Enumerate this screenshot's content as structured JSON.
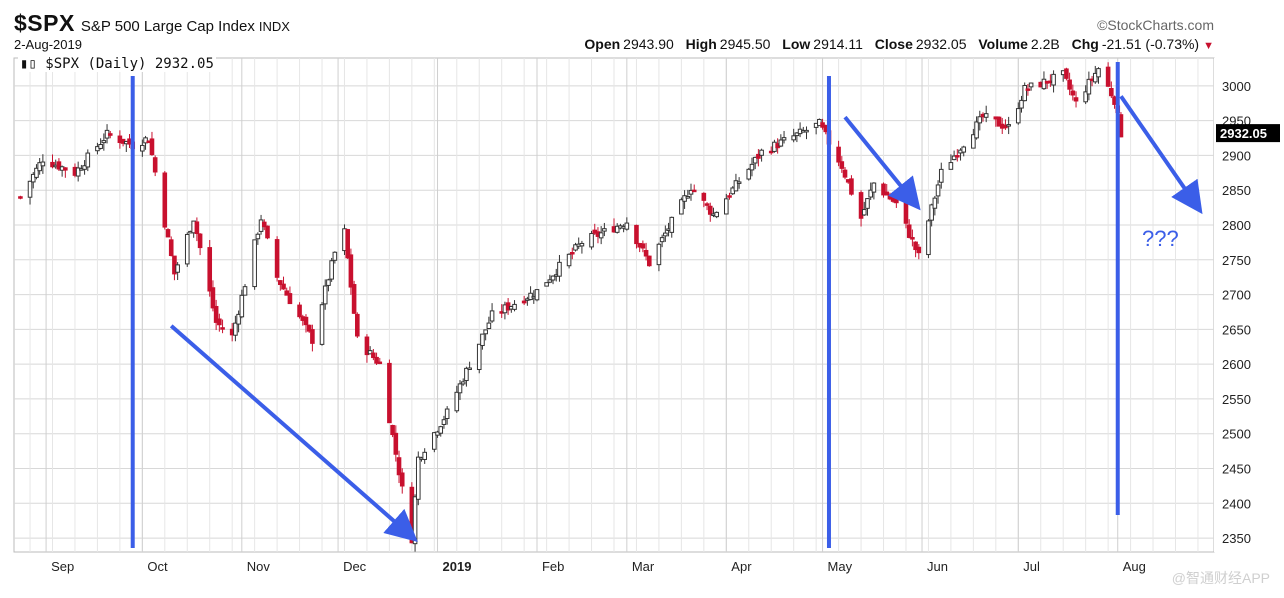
{
  "header": {
    "ticker": "$SPX",
    "name": "S&P 500 Large Cap Index",
    "exchange": "INDX",
    "date": "2-Aug-2019",
    "source": "©StockCharts.com",
    "open_label": "Open",
    "open": "2943.90",
    "high_label": "High",
    "high": "2945.50",
    "low_label": "Low",
    "low": "2914.11",
    "close_label": "Close",
    "close": "2932.05",
    "volume_label": "Volume",
    "volume": "2.2B",
    "chg_label": "Chg",
    "chg": "-21.51 (-0.73%)",
    "chg_icon": "down-triangle-icon"
  },
  "legend": {
    "icon": "candlestick-icon",
    "text": "$SPX (Daily) 2932.05"
  },
  "annotation_text": "???",
  "watermark": "@智通财经APP",
  "colors": {
    "up": "#333333",
    "down": "#c8102e",
    "grid": "#d8d8d8",
    "arrow": "#3b5ee8",
    "price_tag": "#000000"
  },
  "chart_data": {
    "type": "candlestick",
    "ylim": [
      2330,
      3040
    ],
    "y_ticks": [
      2350,
      2400,
      2450,
      2500,
      2550,
      2600,
      2650,
      2700,
      2750,
      2800,
      2850,
      2900,
      2950,
      3000
    ],
    "x_labels": [
      "Sep",
      "Oct",
      "Nov",
      "Dec",
      "2019",
      "Feb",
      "Mar",
      "Apr",
      "May",
      "Jun",
      "Jul",
      "Aug"
    ],
    "last_price_label": "2932.05",
    "grid": true,
    "close_path": [
      {
        "date": "2018-08-24",
        "close": 2840
      },
      {
        "date": "2018-08-31",
        "close": 2895
      },
      {
        "date": "2018-09-10",
        "close": 2875
      },
      {
        "date": "2018-09-20",
        "close": 2930
      },
      {
        "date": "2018-09-28",
        "close": 2915
      },
      {
        "date": "2018-10-03",
        "close": 2925
      },
      {
        "date": "2018-10-11",
        "close": 2730
      },
      {
        "date": "2018-10-17",
        "close": 2810
      },
      {
        "date": "2018-10-24",
        "close": 2660
      },
      {
        "date": "2018-10-29",
        "close": 2640
      },
      {
        "date": "2018-11-07",
        "close": 2810
      },
      {
        "date": "2018-11-12",
        "close": 2725
      },
      {
        "date": "2018-11-23",
        "close": 2635
      },
      {
        "date": "2018-11-30",
        "close": 2760
      },
      {
        "date": "2018-12-03",
        "close": 2790
      },
      {
        "date": "2018-12-07",
        "close": 2635
      },
      {
        "date": "2018-12-14",
        "close": 2600
      },
      {
        "date": "2018-12-21",
        "close": 2420
      },
      {
        "date": "2018-12-24",
        "close": 2350
      },
      {
        "date": "2018-12-26",
        "close": 2465
      },
      {
        "date": "2019-01-04",
        "close": 2530
      },
      {
        "date": "2019-01-18",
        "close": 2670
      },
      {
        "date": "2019-02-01",
        "close": 2705
      },
      {
        "date": "2019-02-15",
        "close": 2775
      },
      {
        "date": "2019-03-01",
        "close": 2805
      },
      {
        "date": "2019-03-08",
        "close": 2745
      },
      {
        "date": "2019-03-21",
        "close": 2855
      },
      {
        "date": "2019-03-28",
        "close": 2815
      },
      {
        "date": "2019-04-12",
        "close": 2905
      },
      {
        "date": "2019-04-30",
        "close": 2945
      },
      {
        "date": "2019-05-07",
        "close": 2885
      },
      {
        "date": "2019-05-13",
        "close": 2810
      },
      {
        "date": "2019-05-17",
        "close": 2860
      },
      {
        "date": "2019-05-24",
        "close": 2830
      },
      {
        "date": "2019-05-31",
        "close": 2755
      },
      {
        "date": "2019-06-07",
        "close": 2875
      },
      {
        "date": "2019-06-20",
        "close": 2955
      },
      {
        "date": "2019-06-28",
        "close": 2940
      },
      {
        "date": "2019-07-03",
        "close": 2995
      },
      {
        "date": "2019-07-15",
        "close": 3015
      },
      {
        "date": "2019-07-19",
        "close": 2975
      },
      {
        "date": "2019-07-26",
        "close": 3025
      },
      {
        "date": "2019-07-31",
        "close": 2980
      },
      {
        "date": "2019-08-01",
        "close": 2955
      },
      {
        "date": "2019-08-02",
        "close": 2932
      }
    ],
    "annotations": [
      {
        "type": "vertical-line",
        "date": "2018-09-28"
      },
      {
        "type": "vertical-line",
        "date": "2019-05-03"
      },
      {
        "type": "vertical-line",
        "date": "2019-08-01"
      },
      {
        "type": "arrow",
        "from": {
          "date": "2018-10-10",
          "value": 2655
        },
        "to": {
          "date": "2018-12-24",
          "value": 2352
        }
      },
      {
        "type": "arrow",
        "from": {
          "date": "2019-05-08",
          "value": 2955
        },
        "to": {
          "date": "2019-05-30",
          "value": 2830
        }
      },
      {
        "type": "arrow",
        "from": {
          "date": "2019-08-02",
          "value": 2985
        },
        "to": {
          "date": "2019-08-26",
          "value": 2825
        }
      }
    ]
  }
}
